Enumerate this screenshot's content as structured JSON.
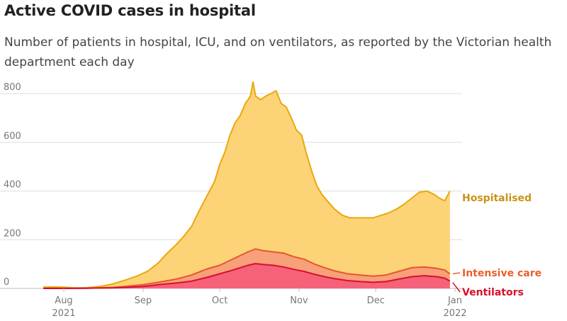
{
  "header": {
    "title": "Active COVID cases in hospital",
    "subtitle": "Number of patients in hospital, ICU, and on ventilators, as reported by the Victorian health department each day"
  },
  "chart_data": {
    "type": "area",
    "title": "Active COVID cases in hospital",
    "subtitle": "Number of patients in hospital, ICU, and on ventilators, as reported by the Victorian health department each day",
    "xlabel": "",
    "ylabel": "",
    "ylim": [
      0,
      850
    ],
    "yticks": [
      {
        "value": 0,
        "label": "0"
      },
      {
        "value": 200,
        "label": "200"
      },
      {
        "value": 400,
        "label": "400"
      },
      {
        "value": 600,
        "label": "600"
      },
      {
        "value": 800,
        "label": "800"
      }
    ],
    "xlim": [
      "2021-07-24",
      "2022-01-01"
    ],
    "xticks": [
      {
        "date": "2021-08-01",
        "line1": "Aug",
        "line2": "2021"
      },
      {
        "date": "2021-09-01",
        "line1": "Sep",
        "line2": ""
      },
      {
        "date": "2021-10-01",
        "line1": "Oct",
        "line2": ""
      },
      {
        "date": "2021-11-01",
        "line1": "Nov",
        "line2": ""
      },
      {
        "date": "2021-12-01",
        "line1": "Dec",
        "line2": ""
      },
      {
        "date": "2022-01-01",
        "line1": "Jan",
        "line2": "2022"
      }
    ],
    "grid": true,
    "legend": "direct labels at right end of series",
    "series": [
      {
        "name": "Hospitalised",
        "line_color": "#e8a90c",
        "fill_color": "#fdd377",
        "label_color": "#c99416",
        "points": [
          [
            "2021-07-24",
            5
          ],
          [
            "2021-07-28",
            6
          ],
          [
            "2021-08-01",
            5
          ],
          [
            "2021-08-05",
            2
          ],
          [
            "2021-08-10",
            3
          ],
          [
            "2021-08-15",
            8
          ],
          [
            "2021-08-20",
            18
          ],
          [
            "2021-08-25",
            34
          ],
          [
            "2021-08-30",
            52
          ],
          [
            "2021-09-03",
            72
          ],
          [
            "2021-09-07",
            105
          ],
          [
            "2021-09-10",
            140
          ],
          [
            "2021-09-14",
            180
          ],
          [
            "2021-09-17",
            215
          ],
          [
            "2021-09-20",
            255
          ],
          [
            "2021-09-23",
            320
          ],
          [
            "2021-09-26",
            380
          ],
          [
            "2021-09-29",
            440
          ],
          [
            "2021-10-01",
            510
          ],
          [
            "2021-10-03",
            560
          ],
          [
            "2021-10-05",
            630
          ],
          [
            "2021-10-07",
            680
          ],
          [
            "2021-10-09",
            710
          ],
          [
            "2021-10-11",
            760
          ],
          [
            "2021-10-13",
            790
          ],
          [
            "2021-10-14",
            848
          ],
          [
            "2021-10-15",
            790
          ],
          [
            "2021-10-17",
            775
          ],
          [
            "2021-10-19",
            790
          ],
          [
            "2021-10-21",
            800
          ],
          [
            "2021-10-23",
            812
          ],
          [
            "2021-10-25",
            760
          ],
          [
            "2021-10-27",
            745
          ],
          [
            "2021-10-29",
            700
          ],
          [
            "2021-10-31",
            650
          ],
          [
            "2021-11-02",
            630
          ],
          [
            "2021-11-04",
            550
          ],
          [
            "2021-11-06",
            480
          ],
          [
            "2021-11-08",
            420
          ],
          [
            "2021-11-10",
            385
          ],
          [
            "2021-11-12",
            360
          ],
          [
            "2021-11-15",
            325
          ],
          [
            "2021-11-18",
            300
          ],
          [
            "2021-11-21",
            290
          ],
          [
            "2021-11-24",
            290
          ],
          [
            "2021-11-27",
            290
          ],
          [
            "2021-11-30",
            290
          ],
          [
            "2021-12-03",
            300
          ],
          [
            "2021-12-06",
            310
          ],
          [
            "2021-12-09",
            325
          ],
          [
            "2021-12-12",
            345
          ],
          [
            "2021-12-15",
            370
          ],
          [
            "2021-12-18",
            395
          ],
          [
            "2021-12-21",
            400
          ],
          [
            "2021-12-24",
            385
          ],
          [
            "2021-12-26",
            370
          ],
          [
            "2021-12-28",
            360
          ],
          [
            "2021-12-30",
            400
          ]
        ]
      },
      {
        "name": "Intensive care",
        "line_color": "#e4572e",
        "fill_color": "#f8a07a",
        "label_color": "#e8602c",
        "points": [
          [
            "2021-07-24",
            1
          ],
          [
            "2021-08-01",
            1
          ],
          [
            "2021-08-10",
            1
          ],
          [
            "2021-08-20",
            4
          ],
          [
            "2021-08-25",
            8
          ],
          [
            "2021-09-01",
            15
          ],
          [
            "2021-09-07",
            25
          ],
          [
            "2021-09-14",
            38
          ],
          [
            "2021-09-20",
            55
          ],
          [
            "2021-09-26",
            80
          ],
          [
            "2021-10-01",
            95
          ],
          [
            "2021-10-05",
            115
          ],
          [
            "2021-10-09",
            135
          ],
          [
            "2021-10-12",
            150
          ],
          [
            "2021-10-15",
            162
          ],
          [
            "2021-10-18",
            155
          ],
          [
            "2021-10-22",
            150
          ],
          [
            "2021-10-26",
            145
          ],
          [
            "2021-10-30",
            130
          ],
          [
            "2021-11-03",
            120
          ],
          [
            "2021-11-07",
            100
          ],
          [
            "2021-11-11",
            85
          ],
          [
            "2021-11-15",
            72
          ],
          [
            "2021-11-20",
            60
          ],
          [
            "2021-11-25",
            55
          ],
          [
            "2021-11-30",
            50
          ],
          [
            "2021-12-05",
            55
          ],
          [
            "2021-12-10",
            70
          ],
          [
            "2021-12-15",
            85
          ],
          [
            "2021-12-20",
            88
          ],
          [
            "2021-12-25",
            82
          ],
          [
            "2021-12-28",
            75
          ],
          [
            "2021-12-30",
            60
          ]
        ]
      },
      {
        "name": "Ventilators",
        "line_color": "#d90f2c",
        "fill_color": "#f56279",
        "label_color": "#d90f2c",
        "points": [
          [
            "2021-07-24",
            0
          ],
          [
            "2021-08-01",
            0
          ],
          [
            "2021-08-10",
            1
          ],
          [
            "2021-08-20",
            2
          ],
          [
            "2021-08-25",
            4
          ],
          [
            "2021-09-01",
            8
          ],
          [
            "2021-09-07",
            15
          ],
          [
            "2021-09-14",
            22
          ],
          [
            "2021-09-20",
            30
          ],
          [
            "2021-09-26",
            45
          ],
          [
            "2021-10-01",
            60
          ],
          [
            "2021-10-05",
            72
          ],
          [
            "2021-10-09",
            85
          ],
          [
            "2021-10-12",
            95
          ],
          [
            "2021-10-15",
            102
          ],
          [
            "2021-10-18",
            98
          ],
          [
            "2021-10-22",
            95
          ],
          [
            "2021-10-26",
            88
          ],
          [
            "2021-10-30",
            78
          ],
          [
            "2021-11-03",
            70
          ],
          [
            "2021-11-07",
            58
          ],
          [
            "2021-11-11",
            48
          ],
          [
            "2021-11-15",
            40
          ],
          [
            "2021-11-20",
            32
          ],
          [
            "2021-11-25",
            28
          ],
          [
            "2021-11-30",
            25
          ],
          [
            "2021-12-05",
            28
          ],
          [
            "2021-12-10",
            38
          ],
          [
            "2021-12-15",
            48
          ],
          [
            "2021-12-20",
            52
          ],
          [
            "2021-12-25",
            48
          ],
          [
            "2021-12-28",
            42
          ],
          [
            "2021-12-30",
            30
          ]
        ]
      }
    ]
  }
}
